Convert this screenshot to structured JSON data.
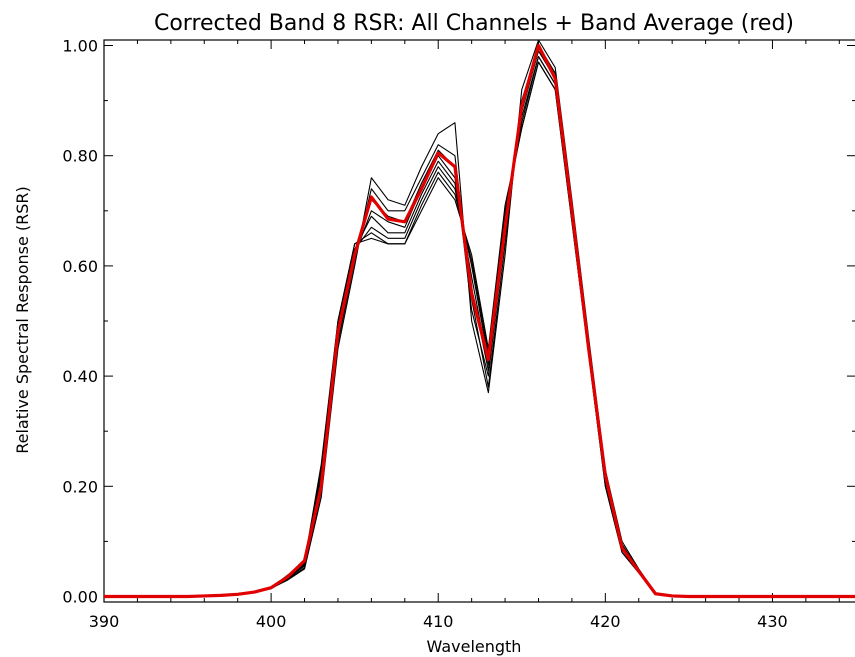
{
  "chart_data": {
    "type": "line",
    "title": "Corrected Band 8 RSR: All Channels + Band Average (red)",
    "xlabel": "Wavelength",
    "ylabel": "Relative Spectral Response (RSR)",
    "xlim": [
      390,
      435
    ],
    "ylim": [
      -0.01,
      1.01
    ],
    "x_ticks": [
      390,
      400,
      410,
      420,
      430
    ],
    "x_tick_labels": [
      "390",
      "400",
      "410",
      "420",
      "430"
    ],
    "y_ticks": [
      0.0,
      0.2,
      0.4,
      0.6,
      0.8,
      1.0
    ],
    "y_tick_labels": [
      "0.00",
      "0.20",
      "0.40",
      "0.60",
      "0.80",
      "1.00"
    ],
    "grid": false,
    "legend": "none",
    "colors": {
      "channels": "#000000",
      "average": "#e00000",
      "axes": "#000000"
    },
    "x": [
      390,
      391,
      392,
      393,
      394,
      395,
      396,
      397,
      398,
      399,
      400,
      401,
      402,
      403,
      404,
      405,
      406,
      407,
      408,
      409,
      410,
      411,
      412,
      413,
      414,
      415,
      416,
      417,
      418,
      419,
      420,
      421,
      422,
      423,
      424,
      425,
      426,
      427,
      428,
      429,
      430,
      431,
      432,
      433,
      434,
      435
    ],
    "series": [
      {
        "values": [
          0,
          0,
          0,
          0,
          0,
          0,
          0.001,
          0.002,
          0.004,
          0.008,
          0.015,
          0.03,
          0.05,
          0.18,
          0.45,
          0.6,
          0.76,
          0.72,
          0.71,
          0.78,
          0.84,
          0.86,
          0.5,
          0.37,
          0.62,
          0.92,
          1.01,
          0.96,
          0.72,
          0.47,
          0.23,
          0.1,
          0.05,
          0.006,
          0.001,
          0,
          0,
          0,
          0,
          0,
          0,
          0,
          0,
          0,
          0,
          0
        ]
      },
      {
        "values": [
          0,
          0,
          0,
          0,
          0,
          0,
          0.001,
          0.002,
          0.004,
          0.008,
          0.014,
          0.032,
          0.052,
          0.19,
          0.46,
          0.61,
          0.74,
          0.7,
          0.7,
          0.76,
          0.82,
          0.8,
          0.54,
          0.38,
          0.64,
          0.9,
          1.0,
          0.95,
          0.71,
          0.46,
          0.22,
          0.095,
          0.048,
          0.006,
          0.001,
          0,
          0,
          0,
          0,
          0,
          0,
          0,
          0,
          0,
          0,
          0
        ]
      },
      {
        "values": [
          0,
          0,
          0,
          0,
          0,
          0,
          0.001,
          0.002,
          0.004,
          0.008,
          0.016,
          0.034,
          0.055,
          0.2,
          0.47,
          0.62,
          0.72,
          0.69,
          0.68,
          0.75,
          0.81,
          0.78,
          0.52,
          0.4,
          0.66,
          0.89,
          0.99,
          0.95,
          0.71,
          0.46,
          0.22,
          0.09,
          0.046,
          0.005,
          0.001,
          0,
          0,
          0,
          0,
          0,
          0,
          0,
          0,
          0,
          0,
          0
        ]
      },
      {
        "values": [
          0,
          0,
          0,
          0,
          0,
          0,
          0.001,
          0.002,
          0.004,
          0.008,
          0.015,
          0.035,
          0.057,
          0.21,
          0.48,
          0.62,
          0.7,
          0.68,
          0.67,
          0.74,
          0.8,
          0.76,
          0.56,
          0.41,
          0.67,
          0.88,
          0.99,
          0.94,
          0.7,
          0.45,
          0.21,
          0.09,
          0.046,
          0.005,
          0.001,
          0,
          0,
          0,
          0,
          0,
          0,
          0,
          0,
          0,
          0,
          0
        ]
      },
      {
        "values": [
          0,
          0,
          0,
          0,
          0,
          0,
          0.001,
          0.002,
          0.004,
          0.008,
          0.015,
          0.036,
          0.058,
          0.21,
          0.49,
          0.63,
          0.69,
          0.66,
          0.66,
          0.73,
          0.79,
          0.75,
          0.58,
          0.42,
          0.68,
          0.87,
          0.98,
          0.93,
          0.69,
          0.45,
          0.21,
          0.085,
          0.045,
          0.005,
          0.001,
          0,
          0,
          0,
          0,
          0,
          0,
          0,
          0,
          0,
          0,
          0
        ]
      },
      {
        "values": [
          0,
          0,
          0,
          0,
          0,
          0,
          0.001,
          0.002,
          0.004,
          0.008,
          0.016,
          0.037,
          0.06,
          0.22,
          0.49,
          0.63,
          0.67,
          0.65,
          0.65,
          0.72,
          0.78,
          0.74,
          0.6,
          0.43,
          0.69,
          0.86,
          0.98,
          0.93,
          0.69,
          0.44,
          0.21,
          0.085,
          0.044,
          0.005,
          0.001,
          0,
          0,
          0,
          0,
          0,
          0,
          0,
          0,
          0,
          0,
          0
        ]
      },
      {
        "values": [
          0,
          0,
          0,
          0,
          0,
          0,
          0.001,
          0.002,
          0.004,
          0.008,
          0.016,
          0.038,
          0.062,
          0.23,
          0.5,
          0.64,
          0.66,
          0.64,
          0.64,
          0.71,
          0.77,
          0.73,
          0.61,
          0.44,
          0.7,
          0.85,
          0.97,
          0.92,
          0.68,
          0.44,
          0.2,
          0.08,
          0.043,
          0.004,
          0.001,
          0,
          0,
          0,
          0,
          0,
          0,
          0,
          0,
          0,
          0,
          0
        ]
      },
      {
        "values": [
          0,
          0,
          0,
          0,
          0,
          0,
          0.001,
          0.002,
          0.004,
          0.008,
          0.016,
          0.039,
          0.063,
          0.24,
          0.5,
          0.64,
          0.65,
          0.64,
          0.64,
          0.7,
          0.76,
          0.72,
          0.62,
          0.45,
          0.71,
          0.85,
          0.97,
          0.92,
          0.68,
          0.44,
          0.2,
          0.08,
          0.043,
          0.004,
          0.001,
          0,
          0,
          0,
          0,
          0,
          0,
          0,
          0,
          0,
          0,
          0
        ]
      },
      {
        "name": "Band Average",
        "values": [
          0,
          0,
          0,
          0,
          0,
          0,
          0.001,
          0.002,
          0.004,
          0.008,
          0.016,
          0.036,
          0.065,
          0.2,
          0.48,
          0.62,
          0.725,
          0.685,
          0.68,
          0.74,
          0.805,
          0.78,
          0.55,
          0.43,
          0.67,
          0.89,
          1.0,
          0.94,
          0.7,
          0.45,
          0.22,
          0.088,
          0.046,
          0.005,
          0.001,
          0,
          0,
          0,
          0,
          0,
          0,
          0,
          0,
          0,
          0,
          0
        ]
      }
    ]
  }
}
